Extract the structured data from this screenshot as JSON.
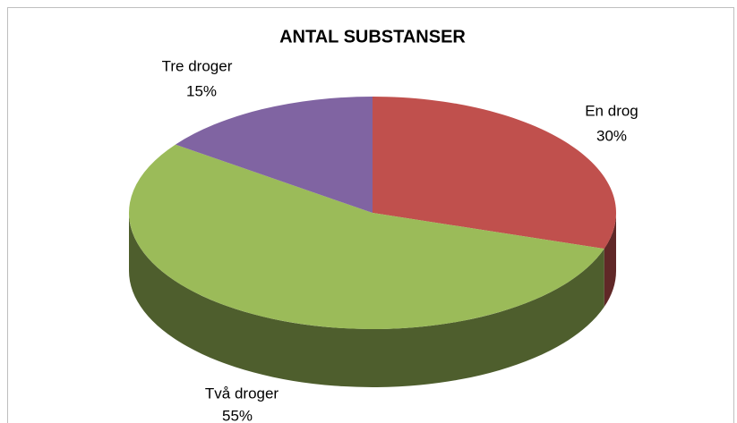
{
  "chart_data": {
    "type": "pie3d",
    "title": "ANTAL SUBSTANSER",
    "categories": [
      "En drog",
      "Två droger",
      "Tre droger"
    ],
    "values": [
      30,
      55,
      15
    ],
    "value_labels": [
      "30%",
      "55%",
      "15%"
    ],
    "colors": [
      "#c0504d",
      "#9bbb59",
      "#8064a2"
    ]
  }
}
